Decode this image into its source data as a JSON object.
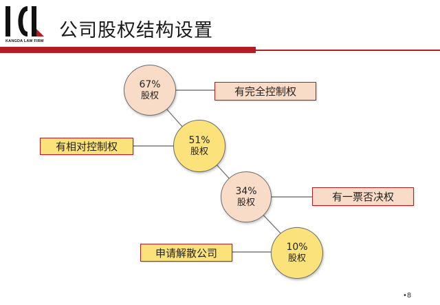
{
  "logo": {
    "firm_name": "KANGDA LAW FIRM"
  },
  "header": {
    "title": "公司股权结构设置"
  },
  "nodes": [
    {
      "percent": "67%",
      "label": "股权",
      "right": "有完全控制权"
    },
    {
      "percent": "51%",
      "label": "股权",
      "left": "有相对控制权"
    },
    {
      "percent": "34%",
      "label": "股权",
      "right": "有一票否决权"
    },
    {
      "percent": "10%",
      "label": "股权",
      "left": "申请解散公司"
    }
  ],
  "colors": {
    "accent": "#b31d22",
    "circle_pale": "#f9dcc8",
    "circle_gold": "#fbe27a"
  },
  "footer": {
    "page_number": "•8"
  }
}
